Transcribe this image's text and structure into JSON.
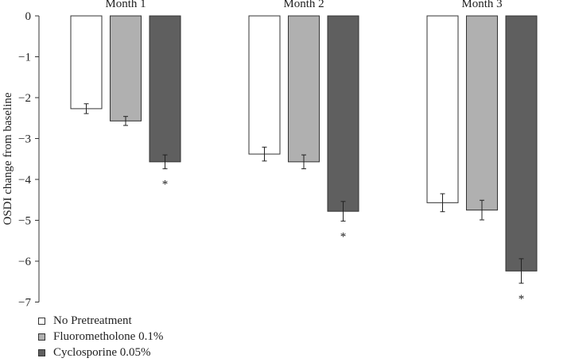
{
  "chart_data": {
    "type": "bar",
    "categories": [
      "Month 1",
      "Month 2",
      "Month 3"
    ],
    "series": [
      {
        "name": "No Pretreatment",
        "values": [
          -2.27,
          -3.38,
          -4.57
        ],
        "errors": [
          0.12,
          0.17,
          0.22
        ],
        "color": "#ffffff",
        "significant": [
          false,
          false,
          false
        ]
      },
      {
        "name": "Fluorometholone 0.1%",
        "values": [
          -2.57,
          -3.57,
          -4.75
        ],
        "errors": [
          0.11,
          0.17,
          0.24
        ],
        "color": "#b0b0b0",
        "significant": [
          false,
          false,
          false
        ]
      },
      {
        "name": "Cyclosporine 0.05%",
        "values": [
          -3.57,
          -4.78,
          -6.24
        ],
        "errors": [
          0.17,
          0.24,
          0.3
        ],
        "color": "#5f5f5f",
        "significant": [
          true,
          true,
          true
        ]
      }
    ],
    "ylabel": "OSDI change from baseline",
    "xlabel": "",
    "title": "",
    "ylim": [
      -7,
      0
    ],
    "yticks": [
      0,
      -1,
      -2,
      -3,
      -4,
      -5,
      -6,
      -7
    ],
    "significance_marker": "*",
    "grid": false,
    "legend_position": "bottom-left"
  }
}
